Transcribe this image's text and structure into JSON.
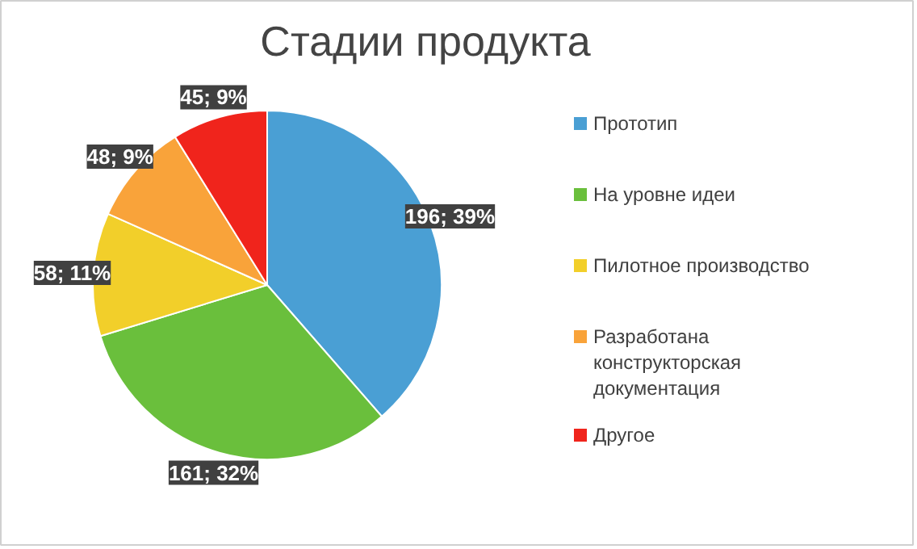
{
  "chart_data": {
    "type": "pie",
    "title": "Стадии продукта",
    "categories": [
      "Прототип",
      "На уровне идеи",
      "Пилотное производство",
      "Разработана конструкторская документация",
      "Другое"
    ],
    "values": [
      196,
      161,
      58,
      48,
      45
    ],
    "colors": [
      "#4a9fd4",
      "#6abf3c",
      "#f2cf2a",
      "#f9a33a",
      "#f0241c"
    ],
    "value_labels": [
      "196; 39%",
      "161; 32%",
      "58; 11%",
      "48; 9%",
      "45; 9%"
    ],
    "legend": "right"
  }
}
